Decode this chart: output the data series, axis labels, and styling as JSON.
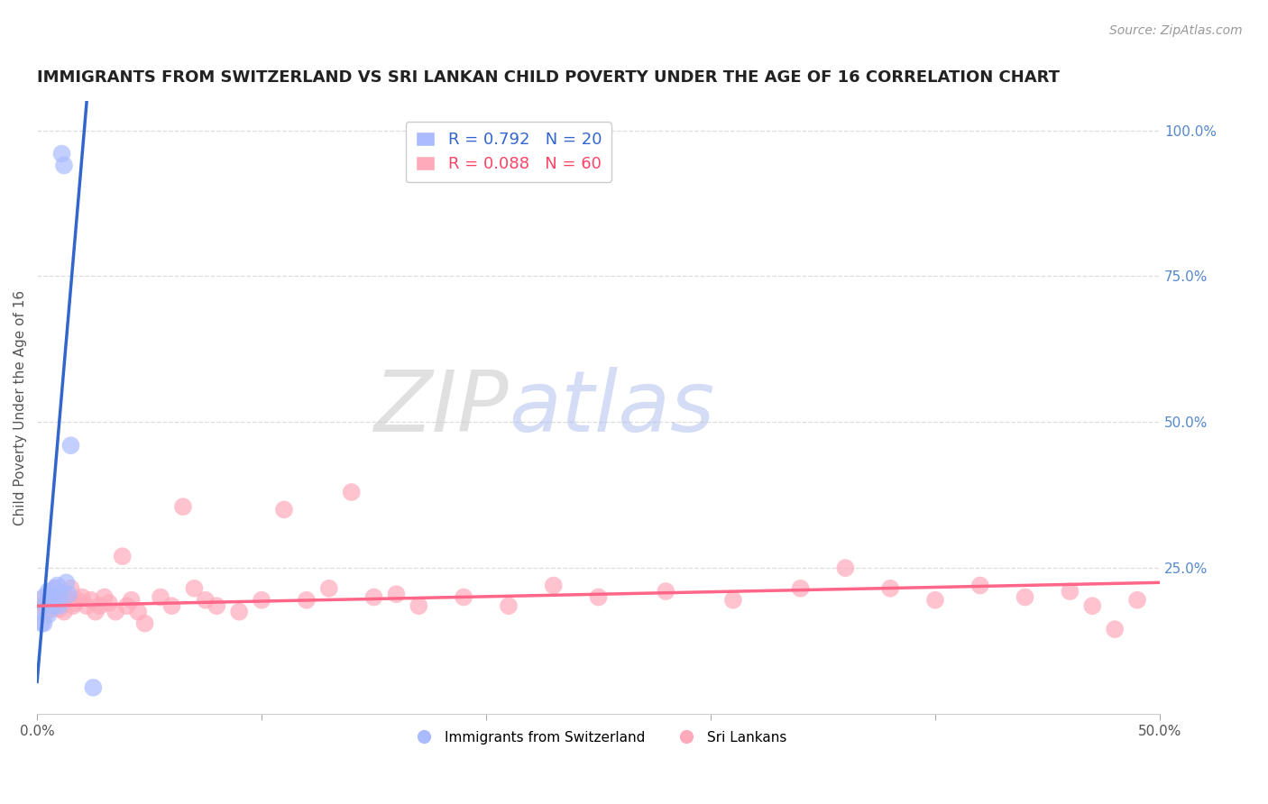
{
  "title": "IMMIGRANTS FROM SWITZERLAND VS SRI LANKAN CHILD POVERTY UNDER THE AGE OF 16 CORRELATION CHART",
  "source": "Source: ZipAtlas.com",
  "ylabel": "Child Poverty Under the Age of 16",
  "watermark_zip": "ZIP",
  "watermark_atlas": "atlas",
  "legend_top": [
    {
      "label": "R = 0.792   N = 20",
      "color": "#6699ff"
    },
    {
      "label": "R = 0.088   N = 60",
      "color": "#ff6688"
    }
  ],
  "legend_bottom": [
    "Immigrants from Switzerland",
    "Sri Lankans"
  ],
  "swiss_scatter_x": [
    0.001,
    0.002,
    0.003,
    0.003,
    0.004,
    0.005,
    0.005,
    0.006,
    0.007,
    0.007,
    0.008,
    0.009,
    0.01,
    0.01,
    0.011,
    0.012,
    0.013,
    0.014,
    0.015,
    0.025
  ],
  "swiss_scatter_y": [
    0.175,
    0.155,
    0.2,
    0.155,
    0.19,
    0.21,
    0.17,
    0.205,
    0.2,
    0.185,
    0.215,
    0.22,
    0.205,
    0.185,
    0.96,
    0.94,
    0.225,
    0.205,
    0.46,
    0.045
  ],
  "sri_scatter_x": [
    0.002,
    0.003,
    0.004,
    0.005,
    0.006,
    0.007,
    0.008,
    0.009,
    0.01,
    0.011,
    0.012,
    0.013,
    0.015,
    0.016,
    0.017,
    0.018,
    0.02,
    0.022,
    0.024,
    0.026,
    0.028,
    0.03,
    0.032,
    0.035,
    0.038,
    0.04,
    0.042,
    0.045,
    0.048,
    0.055,
    0.06,
    0.065,
    0.07,
    0.075,
    0.08,
    0.09,
    0.1,
    0.11,
    0.12,
    0.13,
    0.14,
    0.15,
    0.16,
    0.17,
    0.19,
    0.21,
    0.23,
    0.25,
    0.28,
    0.31,
    0.34,
    0.36,
    0.38,
    0.4,
    0.42,
    0.44,
    0.46,
    0.47,
    0.48,
    0.49
  ],
  "sri_scatter_y": [
    0.195,
    0.185,
    0.175,
    0.19,
    0.18,
    0.2,
    0.215,
    0.195,
    0.18,
    0.19,
    0.175,
    0.2,
    0.215,
    0.185,
    0.19,
    0.195,
    0.2,
    0.185,
    0.195,
    0.175,
    0.185,
    0.2,
    0.19,
    0.175,
    0.27,
    0.185,
    0.195,
    0.175,
    0.155,
    0.2,
    0.185,
    0.355,
    0.215,
    0.195,
    0.185,
    0.175,
    0.195,
    0.35,
    0.195,
    0.215,
    0.38,
    0.2,
    0.205,
    0.185,
    0.2,
    0.185,
    0.22,
    0.2,
    0.21,
    0.195,
    0.215,
    0.25,
    0.215,
    0.195,
    0.22,
    0.2,
    0.21,
    0.185,
    0.145,
    0.195
  ],
  "swiss_line_slope": 45.0,
  "swiss_line_intercept": 0.055,
  "sri_line_slope": 0.08,
  "sri_line_intercept": 0.185,
  "xlim": [
    0.0,
    0.5
  ],
  "ylim": [
    0.0,
    1.05
  ],
  "xticks": [
    0.0,
    0.1,
    0.2,
    0.3,
    0.4,
    0.5
  ],
  "xtick_labels": [
    "0.0%",
    "",
    "",
    "",
    "",
    "50.0%"
  ],
  "ytick_positions": [
    0.25,
    0.5,
    0.75,
    1.0
  ],
  "ytick_labels": [
    "25.0%",
    "50.0%",
    "75.0%",
    "100.0%"
  ],
  "swiss_color": "#aabbff",
  "sri_color": "#ffaabb",
  "swiss_line_color": "#3366cc",
  "sri_line_color": "#ff6688",
  "background_color": "#ffffff",
  "grid_color": "#dddddd",
  "title_fontsize": 13,
  "source_fontsize": 10
}
